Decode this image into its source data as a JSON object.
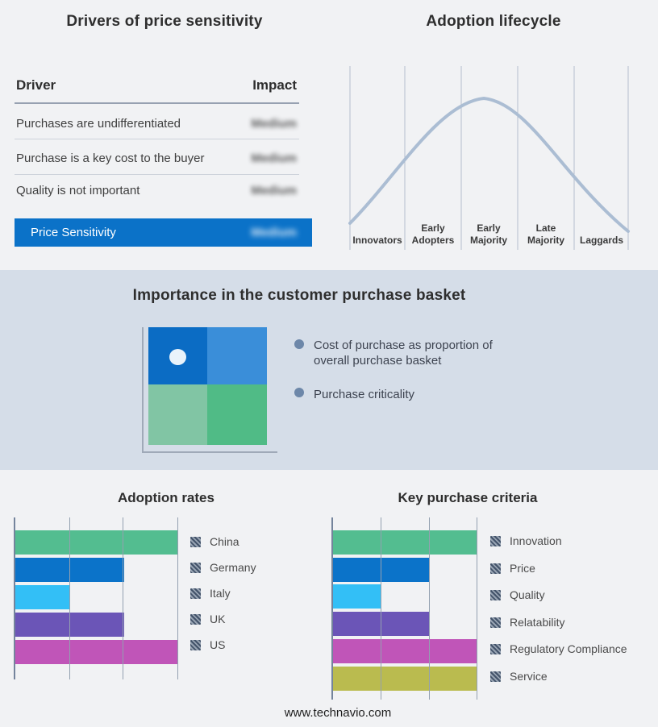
{
  "page": {
    "footer": "www.technavio.com"
  },
  "drivers_panel": {
    "title": "Drivers of price sensitivity",
    "columns": {
      "driver": "Driver",
      "impact": "Impact"
    },
    "rows": [
      {
        "driver": "Purchases are undifferentiated",
        "impact": "Medium",
        "impact_redacted": true
      },
      {
        "driver": "Purchase is a key cost to the buyer",
        "impact": "Medium",
        "impact_redacted": true
      },
      {
        "driver": "Quality is not important",
        "impact": "Medium",
        "impact_redacted": true
      }
    ],
    "summary_row": {
      "label": "Price Sensitivity",
      "impact": "Medium",
      "impact_redacted": true
    },
    "accent_color": "#0b72c8"
  },
  "lifecycle_panel": {
    "stages": [
      "Innovators",
      "Early\nAdopters",
      "Early\nMajority",
      "Late\nMajority",
      "Laggards"
    ],
    "curve_color": "#abbdd3",
    "gridline_color": "#b5bfce"
  },
  "basket_panel": {
    "title": "Importance in the customer purchase basket",
    "bullets": [
      "Cost of purchase as proportion of overall purchase basket",
      "Purchase criticality"
    ],
    "quadrant": {
      "top_left": "#0b6cc4",
      "top_right": "#3a8ed9",
      "bottom_left": "#81c5a4",
      "bottom_right": "#50bb86",
      "marker_quadrant": "top-left",
      "marker_color": "#e9f3fb"
    },
    "background_color": "#d5dde8"
  },
  "chart_data": [
    {
      "type": "line",
      "title": "Adoption lifecycle",
      "x_categories": [
        "Innovators",
        "Early Adopters",
        "Early Majority",
        "Late Majority",
        "Laggards"
      ],
      "curve_shape": "bell (peak over Early Majority)",
      "y_axis": "none (conceptual adoption curve, no numeric values shown)",
      "grid": true
    },
    {
      "type": "bar",
      "orientation": "horizontal",
      "title": "Adoption rates",
      "categories": [
        "China",
        "Germany",
        "Italy",
        "UK",
        "US"
      ],
      "values": [
        3,
        2,
        1,
        2,
        3
      ],
      "xlim": [
        0,
        3
      ],
      "x_tick_labels": "none shown (gridline units)",
      "grid": true,
      "legend_position": "right",
      "colors": [
        "#53bd90",
        "#0b73c9",
        "#33bff6",
        "#6b55b7",
        "#c055b8"
      ]
    },
    {
      "type": "bar",
      "orientation": "horizontal",
      "title": "Key purchase criteria",
      "categories": [
        "Innovation",
        "Price",
        "Quality",
        "Relatability",
        "Regulatory Compliance",
        "Service"
      ],
      "values": [
        3,
        2,
        1,
        2,
        3,
        3
      ],
      "xlim": [
        0,
        3
      ],
      "x_tick_labels": "none shown (gridline units)",
      "grid": true,
      "legend_position": "right",
      "colors": [
        "#53bd90",
        "#0b73c9",
        "#33bff6",
        "#6b55b7",
        "#c055b8",
        "#babb4f"
      ]
    }
  ]
}
